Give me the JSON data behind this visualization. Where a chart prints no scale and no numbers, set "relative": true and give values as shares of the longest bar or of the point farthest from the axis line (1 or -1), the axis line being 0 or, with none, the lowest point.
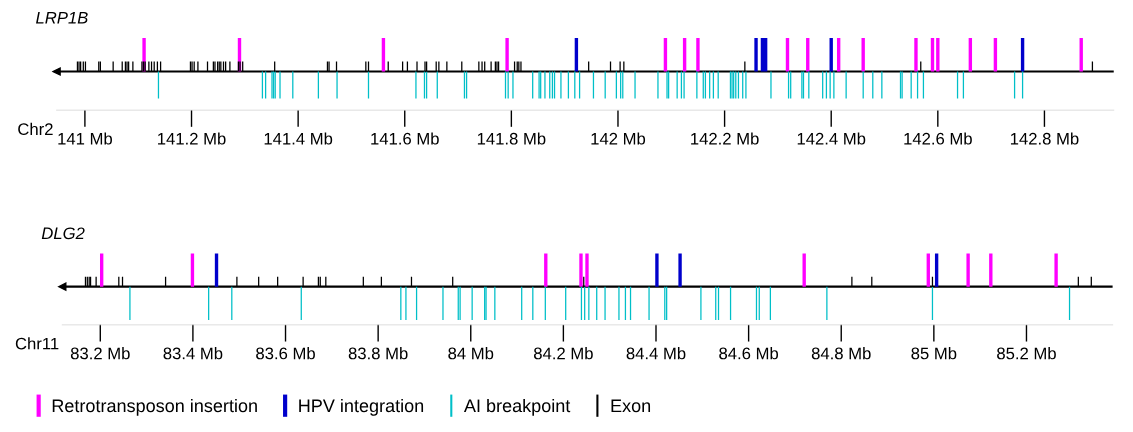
{
  "chart_data": [
    {
      "type": "bar",
      "title": "LRP1B",
      "xlabel": "Chr2",
      "relative": true,
      "xlim": [
        140.947,
        142.93
      ],
      "xticks": [
        {
          "value": 141,
          "label": "141 Mb"
        },
        {
          "value": 141.2,
          "label": "141.2 Mb"
        },
        {
          "value": 141.4,
          "label": "141.4 Mb"
        },
        {
          "value": 141.6,
          "label": "141.6 Mb"
        },
        {
          "value": 141.8,
          "label": "141.8 Mb"
        },
        {
          "value": 142,
          "label": "142 Mb"
        },
        {
          "value": 142.2,
          "label": "142.2 Mb"
        },
        {
          "value": 142.4,
          "label": "142.4 Mb"
        },
        {
          "value": 142.6,
          "label": "142.6 Mb"
        },
        {
          "value": 142.8,
          "label": "142.8 Mb"
        }
      ],
      "series": [
        {
          "color": "#ff00ff",
          "x": [
            141.111,
            141.29,
            141.56,
            141.792,
            142.089,
            142.125,
            142.15,
            142.318,
            142.356,
            142.414,
            142.46,
            142.559,
            142.59,
            142.6,
            142.661,
            142.708,
            142.869
          ],
          "values": [
            1,
            1,
            1,
            1,
            1,
            1,
            1,
            1,
            1,
            1,
            1,
            1,
            1,
            1,
            1,
            1,
            1
          ]
        },
        {
          "color": "#0000cc",
          "x": [
            141.922,
            142.259,
            142.271,
            142.277,
            142.4,
            142.759
          ],
          "values": [
            1,
            1,
            1,
            1,
            1,
            1
          ]
        },
        {
          "color": "#00bfc8",
          "x": [
            141.138,
            141.333,
            141.339,
            141.351,
            141.354,
            141.357,
            141.366,
            141.39,
            141.438,
            141.473,
            141.532,
            141.621,
            141.637,
            141.641,
            141.661,
            141.712,
            141.716,
            141.789,
            141.794,
            141.803,
            141.84,
            141.852,
            141.855,
            141.863,
            141.872,
            141.877,
            141.881,
            141.893,
            141.907,
            141.919,
            141.928,
            141.954,
            141.976,
            141.997,
            142.005,
            142.009,
            142.032,
            142.075,
            142.092,
            142.095,
            142.111,
            142.119,
            142.124,
            142.148,
            142.16,
            142.164,
            142.172,
            142.179,
            142.188,
            142.211,
            142.214,
            142.217,
            142.221,
            142.226,
            142.234,
            142.24,
            142.287,
            142.32,
            142.324,
            142.345,
            142.348,
            142.358,
            142.384,
            142.391,
            142.398,
            142.405,
            142.428,
            142.46,
            142.478,
            142.495,
            142.53,
            142.533,
            142.55,
            142.562,
            142.573,
            142.637,
            142.648,
            142.744,
            142.759
          ],
          "values": [
            -0.8,
            -0.8,
            -0.8,
            -0.8,
            -0.8,
            -0.8,
            -0.8,
            -0.8,
            -0.8,
            -0.8,
            -0.8,
            -0.8,
            -0.8,
            -0.8,
            -0.8,
            -0.8,
            -0.8,
            -0.8,
            -0.8,
            -0.8,
            -0.8,
            -0.8,
            -0.8,
            -0.8,
            -0.8,
            -0.8,
            -0.8,
            -0.8,
            -0.8,
            -0.8,
            -0.8,
            -0.8,
            -0.8,
            -0.8,
            -0.8,
            -0.8,
            -0.8,
            -0.8,
            -0.8,
            -0.8,
            -0.8,
            -0.8,
            -0.8,
            -0.8,
            -0.8,
            -0.8,
            -0.8,
            -0.8,
            -0.8,
            -0.8,
            -0.8,
            -0.8,
            -0.8,
            -0.8,
            -0.8,
            -0.8,
            -0.8,
            -0.8,
            -0.8,
            -0.8,
            -0.8,
            -0.8,
            -0.8,
            -0.8,
            -0.8,
            -0.8,
            -0.8,
            -0.8,
            -0.8,
            -0.8,
            -0.8,
            -0.8,
            -0.8,
            -0.8,
            -0.8,
            -0.8,
            -0.8,
            -0.8,
            -0.8
          ]
        },
        {
          "color": "#000000",
          "x": [
            140.986,
            140.989,
            140.992,
            140.997,
            141.001,
            141.026,
            141.029,
            141.053,
            141.07,
            141.076,
            141.079,
            141.082,
            141.09,
            141.107,
            141.11,
            141.113,
            141.12,
            141.125,
            141.13,
            141.136,
            141.142,
            141.198,
            141.201,
            141.205,
            141.212,
            141.23,
            141.241,
            141.244,
            141.249,
            141.252,
            141.255,
            141.26,
            141.264,
            141.272,
            141.288,
            141.291,
            141.296,
            141.356,
            141.455,
            141.458,
            141.472,
            141.527,
            141.532,
            141.569,
            141.596,
            141.605,
            141.623,
            141.638,
            141.641,
            141.659,
            141.664,
            141.679,
            141.707,
            141.739,
            141.745,
            141.75,
            141.762,
            141.77,
            141.773,
            141.776,
            141.806,
            141.811,
            141.814,
            141.818,
            141.945,
            141.986,
            142.004,
            142.011,
            142.238,
            142.568,
            142.89
          ],
          "values": [
            0.3,
            0.3,
            0.3,
            0.3,
            0.3,
            0.3,
            0.3,
            0.3,
            0.3,
            0.3,
            0.3,
            0.3,
            0.3,
            0.3,
            0.3,
            0.3,
            0.3,
            0.3,
            0.3,
            0.3,
            0.3,
            0.3,
            0.3,
            0.3,
            0.3,
            0.3,
            0.3,
            0.3,
            0.3,
            0.3,
            0.3,
            0.3,
            0.3,
            0.3,
            0.3,
            0.3,
            0.3,
            0.3,
            0.3,
            0.3,
            0.3,
            0.3,
            0.3,
            0.3,
            0.3,
            0.3,
            0.3,
            0.3,
            0.3,
            0.3,
            0.3,
            0.3,
            0.3,
            0.3,
            0.3,
            0.3,
            0.3,
            0.3,
            0.3,
            0.3,
            0.3,
            0.3,
            0.3,
            0.3,
            0.3,
            0.3,
            0.3,
            0.3,
            0.3,
            0.3,
            0.3
          ]
        }
      ]
    },
    {
      "type": "bar",
      "title": "DLG2",
      "xlabel": "Chr11",
      "relative": true,
      "xlim": [
        83.118,
        85.386
      ],
      "legend": "bottom",
      "xticks": [
        {
          "value": 83.2,
          "label": "83.2 Mb"
        },
        {
          "value": 83.4,
          "label": "83.4 Mb"
        },
        {
          "value": 83.6,
          "label": "83.6 Mb"
        },
        {
          "value": 83.8,
          "label": "83.8 Mb"
        },
        {
          "value": 84,
          "label": "84 Mb"
        },
        {
          "value": 84.2,
          "label": "84.2 Mb"
        },
        {
          "value": 84.4,
          "label": "84.4 Mb"
        },
        {
          "value": 84.6,
          "label": "84.6 Mb"
        },
        {
          "value": 84.8,
          "label": "84.8 Mb"
        },
        {
          "value": 85,
          "label": "85 Mb"
        },
        {
          "value": 85.2,
          "label": "85.2 Mb"
        }
      ],
      "series": [
        {
          "name": "Retrotransposon insertion",
          "color": "#ff00ff",
          "x": [
            83.203,
            83.399,
            84.162,
            84.238,
            84.251,
            84.72,
            84.988,
            85.074,
            85.123,
            85.264
          ],
          "values": [
            1,
            1,
            1,
            1,
            1,
            1,
            1,
            1,
            1,
            1
          ]
        },
        {
          "name": "HPV integration",
          "color": "#0000cc",
          "x": [
            83.451,
            84.402,
            84.452,
            85.006
          ],
          "values": [
            1,
            1,
            1,
            1
          ]
        },
        {
          "name": "AI breakpoint",
          "color": "#00bfc8",
          "x": [
            83.264,
            83.434,
            83.484,
            83.634,
            83.849,
            83.86,
            83.883,
            83.94,
            83.973,
            83.977,
            84.003,
            84.03,
            84.033,
            84.052,
            84.11,
            84.134,
            84.161,
            84.205,
            84.239,
            84.246,
            84.255,
            84.272,
            84.29,
            84.32,
            84.334,
            84.345,
            84.385,
            84.419,
            84.423,
            84.497,
            84.529,
            84.535,
            84.561,
            84.617,
            84.623,
            84.647,
            84.769,
            84.997,
            85.293
          ],
          "values": [
            -1,
            -1,
            -1,
            -1,
            -1,
            -1,
            -1,
            -1,
            -1,
            -1,
            -1,
            -1,
            -1,
            -1,
            -1,
            -1,
            -1,
            -1,
            -1,
            -1,
            -1,
            -1,
            -1,
            -1,
            -1,
            -1,
            -1,
            -1,
            -1,
            -1,
            -1,
            -1,
            -1,
            -1,
            -1,
            -1,
            -1,
            -1,
            -1
          ]
        },
        {
          "name": "Exon",
          "color": "#000000",
          "x": [
            83.168,
            83.172,
            83.176,
            83.179,
            83.191,
            83.24,
            83.248,
            83.341,
            83.495,
            83.542,
            83.583,
            83.638,
            83.671,
            83.675,
            83.687,
            83.768,
            83.807,
            83.872,
            83.961,
            84.244,
            84.823,
            84.866,
            84.997,
            85.312,
            85.34
          ],
          "values": [
            0.3,
            0.3,
            0.3,
            0.3,
            0.3,
            0.3,
            0.3,
            0.3,
            0.3,
            0.3,
            0.3,
            0.3,
            0.3,
            0.3,
            0.3,
            0.3,
            0.3,
            0.3,
            0.3,
            0.3,
            0.3,
            0.3,
            0.3,
            0.3,
            0.3
          ]
        }
      ]
    }
  ]
}
